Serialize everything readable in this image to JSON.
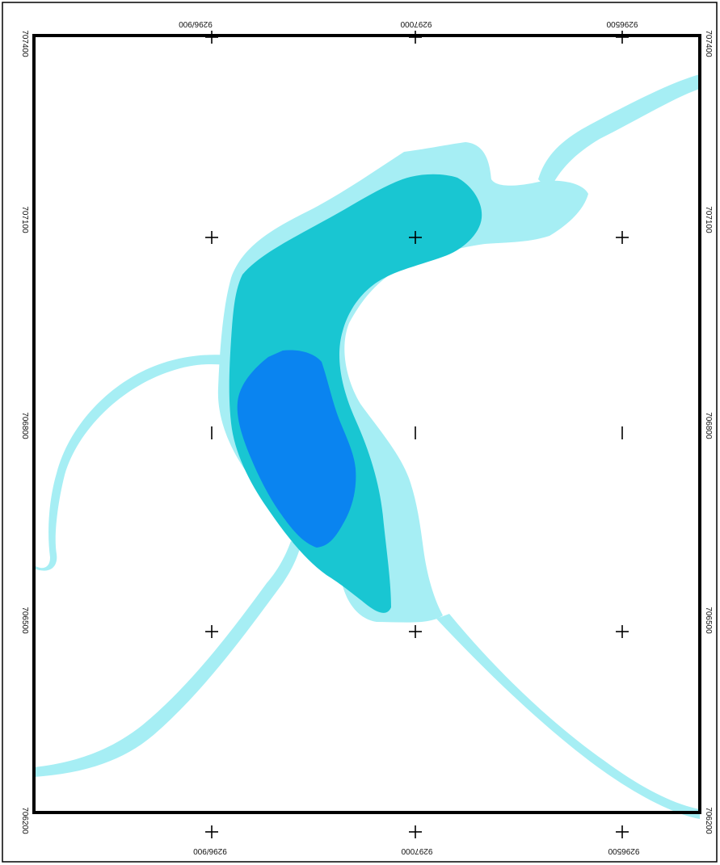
{
  "grid": {
    "top_labels": [
      "9296/900",
      "9297000",
      "9296500"
    ],
    "bottom_labels": [
      "9296/900",
      "9297000",
      "9296500"
    ],
    "left_labels": [
      "707400",
      "707100",
      "706800",
      "706500",
      "706200"
    ],
    "right_labels": [
      "707400",
      "707100",
      "706800",
      "706500",
      "706200"
    ]
  },
  "legend_colors": {
    "flood_shallow": "#a6eef4",
    "flood_medium": "#19c6d2",
    "flood_deep": "#0a84f0",
    "river": "#a6eef4",
    "frame": "#000000"
  }
}
